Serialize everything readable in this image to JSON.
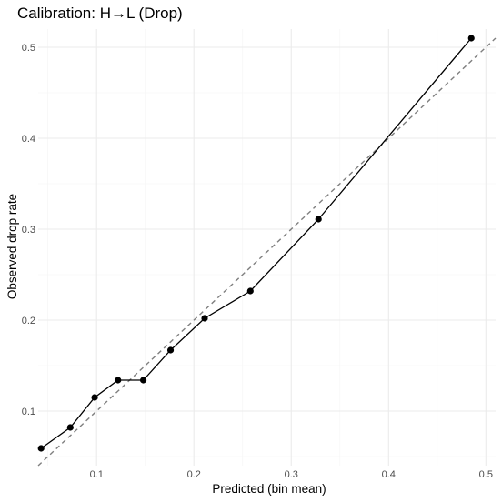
{
  "chart_data": {
    "type": "line",
    "title": "Calibration: H→L (Drop)",
    "xlabel": "Predicted (bin mean)",
    "ylabel": "Observed drop rate",
    "xlim": [
      0.04,
      0.51
    ],
    "ylim": [
      0.04,
      0.52
    ],
    "x_ticks": [
      0.1,
      0.2,
      0.3,
      0.4,
      0.5
    ],
    "x_tick_labels": [
      "0.1",
      "0.2",
      "0.3",
      "0.4",
      "0.5"
    ],
    "y_ticks": [
      0.1,
      0.2,
      0.3,
      0.4,
      0.5
    ],
    "y_tick_labels": [
      "0.1",
      "0.2",
      "0.3",
      "0.4",
      "0.5"
    ],
    "grid": true,
    "reference_line": {
      "style": "dashed",
      "color": "#7f7f7f",
      "slope": 1,
      "intercept": 0
    },
    "series": [
      {
        "color": "#000000",
        "markers": true,
        "x": [
          0.043,
          0.073,
          0.098,
          0.122,
          0.148,
          0.176,
          0.211,
          0.258,
          0.328,
          0.485
        ],
        "y": [
          0.059,
          0.082,
          0.115,
          0.134,
          0.134,
          0.167,
          0.202,
          0.232,
          0.311,
          0.51
        ]
      }
    ]
  }
}
